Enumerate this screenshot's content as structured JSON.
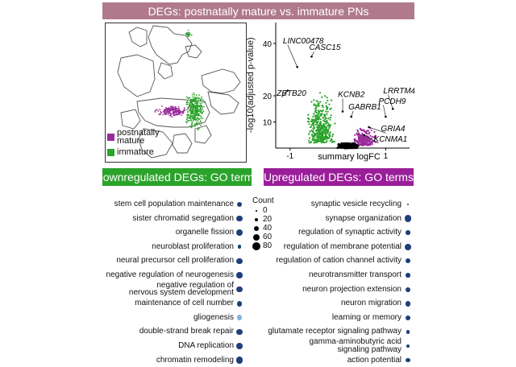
{
  "top_title": "DEGs: postnatally mature vs. immature PNs",
  "umap_legend": [
    {
      "label": "postnatally\nmature",
      "color": "#9a2a9a"
    },
    {
      "label": "immature",
      "color": "#2aa32a"
    }
  ],
  "colors": {
    "mature": "#9a2a9a",
    "immature": "#2aa32a",
    "ns": "#000000",
    "go_dot": "#1f3f7a",
    "go_dot_light": "#7fb4e0"
  },
  "chart_data": [
    {
      "type": "scatter",
      "title": "",
      "xlabel": "summary logFC",
      "ylabel": "-log10(adjusted p-value)",
      "xlim": [
        -1.3,
        1.5
      ],
      "ylim": [
        0,
        48
      ],
      "xticks": [
        -1,
        1
      ],
      "yticks": [
        10,
        20,
        40
      ],
      "grid": false,
      "annotated_genes": [
        {
          "name": "LINC00478",
          "x": -0.85,
          "y": 31
        },
        {
          "name": "CASC15",
          "x": -0.55,
          "y": 35
        },
        {
          "name": "ZBTB20",
          "x": -1.05,
          "y": 22
        },
        {
          "name": "KCNB2",
          "x": 0.1,
          "y": 14
        },
        {
          "name": "GABRB1",
          "x": 0.28,
          "y": 12
        },
        {
          "name": "LRRTM4",
          "x": 1.15,
          "y": 15
        },
        {
          "name": "PCDH9",
          "x": 1.0,
          "y": 12
        },
        {
          "name": "GRIA4",
          "x": 0.65,
          "y": 8
        },
        {
          "name": "KCNMA1",
          "x": 0.55,
          "y": 5
        }
      ]
    },
    {
      "type": "scatter",
      "title": "",
      "xlabel": "",
      "ylabel": "",
      "size_legend_title": "Count",
      "size_legend": [
        0,
        20,
        40,
        60,
        80
      ],
      "downregulated": [
        {
          "term": "stem cell population maintenance",
          "count": 40
        },
        {
          "term": "sister chromatid segregation",
          "count": 50
        },
        {
          "term": "organelle fission",
          "count": 60
        },
        {
          "term": "neuroblast proliferation",
          "count": 20
        },
        {
          "term": "neural precursor cell proliferation",
          "count": 45
        },
        {
          "term": "negative regulation of neurogenesis",
          "count": 45
        },
        {
          "term": "negative regulation of\nnervous system development",
          "count": 45
        },
        {
          "term": "maintenance of cell number",
          "count": 40
        },
        {
          "term": "gliogenesis",
          "count": 40,
          "light": true
        },
        {
          "term": "double-strand break repair",
          "count": 50
        },
        {
          "term": "DNA replication",
          "count": 50
        },
        {
          "term": "chromatin remodeling",
          "count": 60
        }
      ],
      "upregulated": [
        {
          "term": "synaptic vesicle recycling",
          "count": 5
        },
        {
          "term": "synapse organization",
          "count": 60
        },
        {
          "term": "regulation of synaptic activity",
          "count": 25
        },
        {
          "term": "regulation of membrane potential",
          "count": 50
        },
        {
          "term": "regulation of cation channel activity",
          "count": 30
        },
        {
          "term": "neurotransmitter transport",
          "count": 25
        },
        {
          "term": "neuron projection extension",
          "count": 30
        },
        {
          "term": "neuron migration",
          "count": 40
        },
        {
          "term": "learning or memory",
          "count": 30
        },
        {
          "term": "glutamate receptor signaling pathway",
          "count": 20
        },
        {
          "term": "gamma-aminobutyric acid\nsignaling pathway",
          "count": 20
        },
        {
          "term": "action potential",
          "count": 25
        }
      ]
    }
  ]
}
